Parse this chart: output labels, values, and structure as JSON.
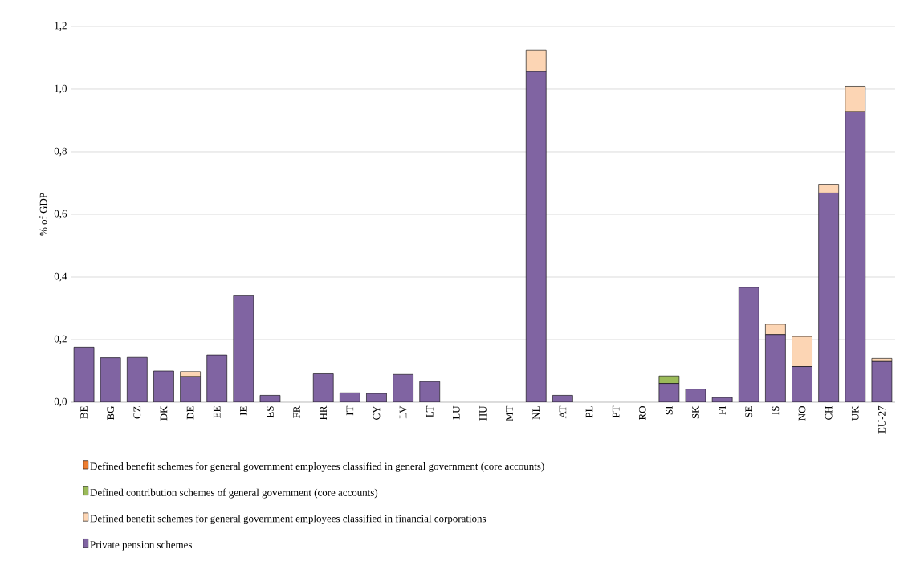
{
  "chart_data": {
    "type": "bar",
    "stacked": true,
    "ylabel": "% of GDP",
    "categories": [
      "BE",
      "BG",
      "CZ",
      "DK",
      "DE",
      "EE",
      "IE",
      "ES",
      "FR",
      "HR",
      "IT",
      "CY",
      "LV",
      "LT",
      "LU",
      "HU",
      "MT",
      "NL",
      "AT",
      "PL",
      "PT",
      "RO",
      "SI",
      "SK",
      "FI",
      "SE",
      "IS",
      "NO",
      "CH",
      "UK",
      "EU-27"
    ],
    "series": [
      {
        "name": "Private pension schemes",
        "color": "#8064a2",
        "values": [
          0.176,
          0.142,
          0.143,
          0.1,
          0.082,
          0.151,
          0.34,
          0.022,
          0,
          0.091,
          0.03,
          0.028,
          0.089,
          0.066,
          0,
          0,
          0,
          1.056,
          0.022,
          0,
          0,
          0,
          0.06,
          0.042,
          0.015,
          0.367,
          0.216,
          0.114,
          0.668,
          0.928,
          0.13
        ]
      },
      {
        "name": "Defined benefit schemes for general government employees classified in financial corporations",
        "color": "#fcd5b4",
        "values": [
          null,
          null,
          null,
          null,
          0.016,
          null,
          null,
          null,
          null,
          null,
          null,
          null,
          null,
          null,
          null,
          null,
          null,
          0.069,
          null,
          null,
          null,
          null,
          null,
          null,
          null,
          null,
          0.033,
          0.096,
          0.028,
          0.081,
          0.01
        ]
      },
      {
        "name": "Defined contribution schemes of general government (core accounts)",
        "color": "#9bbb59",
        "values": [
          null,
          null,
          null,
          null,
          null,
          null,
          null,
          null,
          null,
          null,
          null,
          null,
          null,
          null,
          null,
          null,
          null,
          null,
          null,
          null,
          null,
          null,
          0.024,
          null,
          null,
          null,
          null,
          null,
          null,
          null,
          null
        ]
      },
      {
        "name": "Defined benefit schemes for general government employees classified in general government (core accounts)",
        "color": "#ed7d31",
        "values": [
          null,
          null,
          null,
          null,
          null,
          null,
          null,
          null,
          null,
          null,
          null,
          null,
          null,
          null,
          null,
          null,
          null,
          null,
          null,
          null,
          null,
          null,
          null,
          null,
          null,
          null,
          null,
          null,
          null,
          null,
          null
        ]
      }
    ],
    "ylim": [
      0,
      1.2
    ],
    "yticks": [
      {
        "value": 0,
        "label": "0,0"
      },
      {
        "value": 0.2,
        "label": "0,2"
      },
      {
        "value": 0.4,
        "label": "0,4"
      },
      {
        "value": 0.6,
        "label": "0,6"
      },
      {
        "value": 0.8,
        "label": "0,8"
      },
      {
        "value": 1.0,
        "label": "1,0"
      },
      {
        "value": 1.2,
        "label": "1,2"
      }
    ],
    "grid": "y",
    "legend": "bottom"
  }
}
